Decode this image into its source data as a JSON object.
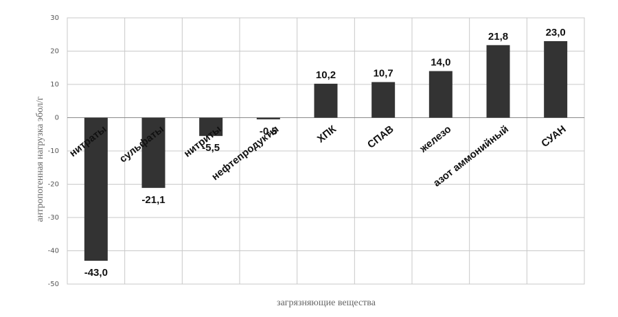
{
  "chart_data": {
    "type": "bar",
    "title": "",
    "xlabel": "загрязняющие вещества",
    "ylabel": "антропогенная нагрузка эбол/г",
    "ylim": [
      -50,
      30
    ],
    "yticks": [
      "30",
      "20",
      "10",
      "0",
      "-10",
      "-20",
      "-30",
      "-40",
      "-50"
    ],
    "grid": true,
    "categories": [
      "нитраты",
      "сульфаты",
      "нитриты",
      "нефтепродукты",
      "ХПК",
      "СПАВ",
      "железо",
      "азот аммонийный",
      "СУАН"
    ],
    "values": [
      -43.0,
      -21.1,
      -5.5,
      -0.5,
      10.2,
      10.7,
      14.0,
      21.8,
      23.0
    ],
    "value_labels": [
      "-43,0",
      "-21,1",
      "-5,5",
      "-0,5",
      "10,2",
      "10,7",
      "14,0",
      "21,8",
      "23,0"
    ],
    "bar_color": "#333333",
    "grid_color": "#c8c8c8"
  }
}
